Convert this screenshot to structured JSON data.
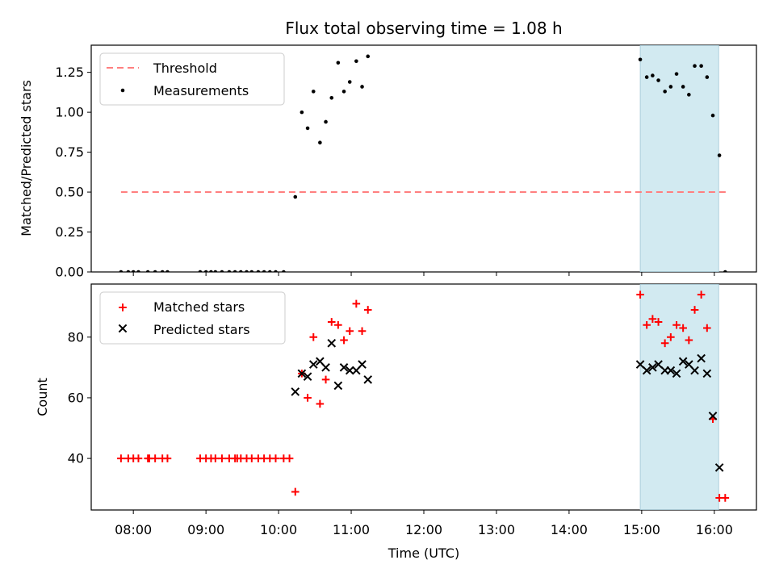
{
  "chart_data": {
    "type": "scatter",
    "title": "Flux total observing time = 1.08 h",
    "xlabel": "Time (UTC)",
    "x_ticks": [
      "08:00",
      "09:00",
      "10:00",
      "11:00",
      "12:00",
      "13:00",
      "14:00",
      "15:00",
      "16:00"
    ],
    "xlim_hours": [
      7.42,
      16.58
    ],
    "highlight_span_hours": [
      14.98,
      16.06
    ],
    "colors": {
      "threshold": "#ff7f7f",
      "measured": "#000000",
      "matched": "#ff0000",
      "predicted": "#000000",
      "span": "#add8e6"
    },
    "panels": [
      {
        "ylabel": "Matched/Predicted stars",
        "ylim": [
          0.0,
          1.42
        ],
        "y_ticks": [
          "0.00",
          "0.25",
          "0.50",
          "0.75",
          "1.00",
          "1.25"
        ],
        "y_tick_values": [
          0.0,
          0.25,
          0.5,
          0.75,
          1.0,
          1.25
        ],
        "legend": {
          "location": "upper-left",
          "entries": [
            "Threshold",
            "Measurements"
          ]
        },
        "threshold": {
          "value": 0.5,
          "x_range": [
            7.83,
            16.17
          ]
        },
        "measurements": {
          "x": [
            7.83,
            7.93,
            8.0,
            8.07,
            8.2,
            8.3,
            8.4,
            8.47,
            8.92,
            9.0,
            9.07,
            9.13,
            9.22,
            9.32,
            9.4,
            9.48,
            9.56,
            9.63,
            9.72,
            9.8,
            9.88,
            9.96,
            10.07,
            10.23,
            10.32,
            10.4,
            10.48,
            10.57,
            10.65,
            10.73,
            10.82,
            10.9,
            10.98,
            11.07,
            11.15,
            11.23,
            14.98,
            15.07,
            15.15,
            15.23,
            15.32,
            15.4,
            15.48,
            15.57,
            15.65,
            15.73,
            15.82,
            15.9,
            15.98,
            16.07,
            16.15
          ],
          "y": [
            0,
            0,
            0,
            0,
            0,
            0,
            0,
            0,
            0,
            0,
            0,
            0,
            0,
            0,
            0,
            0,
            0,
            0,
            0,
            0,
            0,
            0,
            0,
            0.47,
            1.0,
            0.9,
            1.13,
            0.81,
            0.94,
            1.09,
            1.31,
            1.13,
            1.19,
            1.32,
            1.16,
            1.35,
            1.33,
            1.22,
            1.23,
            1.2,
            1.13,
            1.16,
            1.24,
            1.16,
            1.11,
            1.29,
            1.29,
            1.22,
            0.98,
            0.73,
            0.0
          ]
        }
      },
      {
        "ylabel": "Count",
        "ylim": [
          23.0,
          97.5
        ],
        "y_ticks": [
          "40",
          "60",
          "80"
        ],
        "y_tick_values": [
          40,
          60,
          80
        ],
        "legend": {
          "location": "upper-left",
          "entries": [
            "Matched stars",
            "Predicted stars"
          ]
        },
        "matched_stars": {
          "x": [
            7.83,
            7.93,
            8.0,
            8.07,
            8.2,
            8.22,
            8.3,
            8.4,
            8.47,
            8.92,
            9.0,
            9.07,
            9.13,
            9.22,
            9.32,
            9.4,
            9.43,
            9.48,
            9.56,
            9.63,
            9.72,
            9.8,
            9.88,
            9.96,
            10.07,
            10.15,
            10.23,
            10.32,
            10.4,
            10.48,
            10.57,
            10.65,
            10.73,
            10.82,
            10.9,
            10.98,
            11.07,
            11.15,
            11.23,
            14.98,
            15.07,
            15.15,
            15.23,
            15.32,
            15.4,
            15.48,
            15.57,
            15.65,
            15.73,
            15.82,
            15.9,
            15.98,
            16.07,
            16.15
          ],
          "y": [
            40,
            40,
            40,
            40,
            40,
            40,
            40,
            40,
            40,
            40,
            40,
            40,
            40,
            40,
            40,
            40,
            40,
            40,
            40,
            40,
            40,
            40,
            40,
            40,
            40,
            40,
            29,
            68,
            60,
            80,
            58,
            66,
            85,
            84,
            79,
            82,
            91,
            82,
            89,
            94,
            84,
            86,
            85,
            78,
            80,
            84,
            83,
            79,
            89,
            94,
            83,
            53,
            27,
            27
          ]
        },
        "predicted_stars": {
          "x": [
            10.23,
            10.32,
            10.4,
            10.48,
            10.57,
            10.65,
            10.73,
            10.82,
            10.9,
            10.98,
            11.07,
            11.15,
            11.23,
            14.98,
            15.07,
            15.15,
            15.23,
            15.32,
            15.4,
            15.48,
            15.57,
            15.65,
            15.73,
            15.82,
            15.9,
            15.98,
            16.07
          ],
          "y": [
            62,
            68,
            67,
            71,
            72,
            70,
            78,
            64,
            70,
            69,
            69,
            71,
            66,
            71,
            69,
            70,
            71,
            69,
            69,
            68,
            72,
            71,
            69,
            73,
            68,
            54,
            37
          ]
        }
      }
    ]
  }
}
